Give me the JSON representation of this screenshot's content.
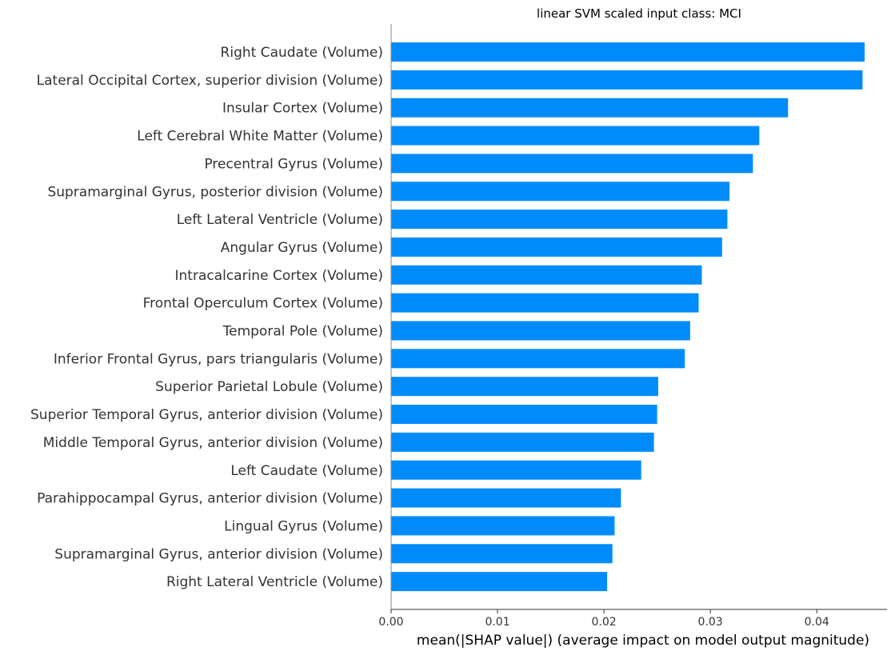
{
  "chart_data": {
    "type": "bar",
    "orientation": "horizontal",
    "title": "linear SVM scaled input class: MCI",
    "xlabel": "mean(|SHAP value|) (average impact on model output magnitude)",
    "ylabel": "",
    "xlim": [
      0.0,
      0.0466
    ],
    "xticks": [
      0.0,
      0.01,
      0.02,
      0.03,
      0.04
    ],
    "xtick_labels": [
      "0.00",
      "0.01",
      "0.02",
      "0.03",
      "0.04"
    ],
    "grid": false,
    "bar_color": "#008bfb",
    "categories": [
      "Right Caudate (Volume)",
      "Lateral Occipital Cortex, superior division (Volume)",
      "Insular Cortex (Volume)",
      "Left Cerebral White Matter (Volume)",
      "Precentral Gyrus (Volume)",
      "Supramarginal Gyrus, posterior division (Volume)",
      "Left Lateral Ventricle (Volume)",
      "Angular Gyrus (Volume)",
      "Intracalcarine Cortex (Volume)",
      "Frontal Operculum Cortex (Volume)",
      "Temporal Pole (Volume)",
      "Inferior Frontal Gyrus, pars triangularis (Volume)",
      "Superior Parietal Lobule (Volume)",
      "Superior Temporal Gyrus, anterior division (Volume)",
      "Middle Temporal Gyrus, anterior division (Volume)",
      "Left Caudate (Volume)",
      "Parahippocampal Gyrus, anterior division (Volume)",
      "Lingual Gyrus (Volume)",
      "Supramarginal Gyrus, anterior division (Volume)",
      "Right Lateral Ventricle (Volume)"
    ],
    "values": [
      0.0445,
      0.0443,
      0.0373,
      0.0346,
      0.034,
      0.0318,
      0.0316,
      0.0311,
      0.0292,
      0.0289,
      0.0281,
      0.0276,
      0.0251,
      0.025,
      0.0247,
      0.0235,
      0.0216,
      0.021,
      0.0208,
      0.0203
    ]
  }
}
